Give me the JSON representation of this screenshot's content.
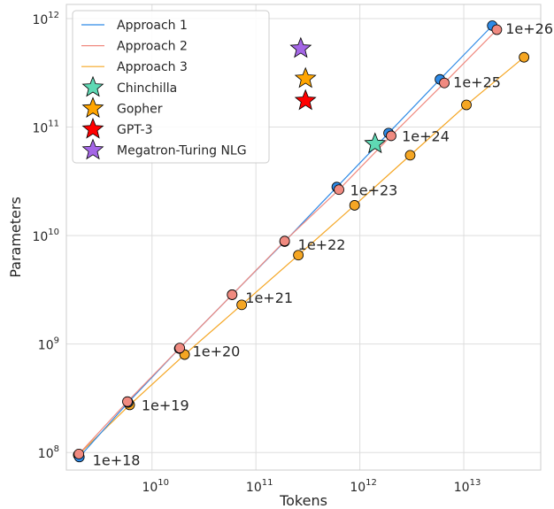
{
  "chart_data": {
    "type": "scatter",
    "title": "",
    "xlabel": "Tokens",
    "ylabel": "Parameters",
    "xscale": "log",
    "yscale": "log",
    "xlim": [
      1500000000.0,
      55000000000000.0
    ],
    "ylim": [
      69000000.0,
      1350000000000.0
    ],
    "grid": true,
    "legend_position": "top-left",
    "x_ticks": [
      {
        "value": 10000000000.0,
        "base": "10",
        "exp": "10"
      },
      {
        "value": 100000000000.0,
        "base": "10",
        "exp": "11"
      },
      {
        "value": 1000000000000.0,
        "base": "10",
        "exp": "12"
      },
      {
        "value": 10000000000000.0,
        "base": "10",
        "exp": "13"
      }
    ],
    "y_ticks": [
      {
        "value": 100000000.0,
        "base": "10",
        "exp": "8"
      },
      {
        "value": 1000000000.0,
        "base": "10",
        "exp": "9"
      },
      {
        "value": 10000000000.0,
        "base": "10",
        "exp": "10"
      },
      {
        "value": 100000000000.0,
        "base": "10",
        "exp": "11"
      },
      {
        "value": 1000000000000.0,
        "base": "10",
        "exp": "12"
      }
    ],
    "series": [
      {
        "name": "Approach 1",
        "color": "#2e8ae6",
        "marker": "circle",
        "points": [
          {
            "x": 2000000000.0,
            "y": 91000000.0
          },
          {
            "x": 5900000000.0,
            "y": 290000000.0
          },
          {
            "x": 18300000000.0,
            "y": 910000000.0
          },
          {
            "x": 59000000000.0,
            "y": 2850000000.0
          },
          {
            "x": 189000000000.0,
            "y": 8800000000.0
          },
          {
            "x": 600000000000.0,
            "y": 28000000000.0
          },
          {
            "x": 1890000000000.0,
            "y": 88000000000.0
          },
          {
            "x": 5900000000000.0,
            "y": 275000000000.0
          },
          {
            "x": 18800000000000.0,
            "y": 860000000000.0
          }
        ]
      },
      {
        "name": "Approach 2",
        "color": "#f08a80",
        "marker": "circle",
        "points": [
          {
            "x": 1980000000.0,
            "y": 97000000.0
          },
          {
            "x": 5800000000.0,
            "y": 295000000.0
          },
          {
            "x": 18500000000.0,
            "y": 920000000.0
          },
          {
            "x": 59000000000.0,
            "y": 2850000000.0
          },
          {
            "x": 189000000000.0,
            "y": 8900000000.0
          },
          {
            "x": 630000000000.0,
            "y": 26500000000.0
          },
          {
            "x": 2000000000000.0,
            "y": 83000000000.0
          },
          {
            "x": 6500000000000.0,
            "y": 255000000000.0
          },
          {
            "x": 20800000000000.0,
            "y": 790000000000.0
          }
        ]
      },
      {
        "name": "Approach 3",
        "color": "#f5a623",
        "marker": "circle",
        "points": [
          {
            "x": 1950000000.0,
            "y": 95000000.0
          },
          {
            "x": 6100000000.0,
            "y": 275000000.0
          },
          {
            "x": 20600000000.0,
            "y": 800000000.0
          },
          {
            "x": 73000000000.0,
            "y": 2300000000.0
          },
          {
            "x": 256000000000.0,
            "y": 6600000000.0
          },
          {
            "x": 890000000000.0,
            "y": 19000000000.0
          },
          {
            "x": 3050000000000.0,
            "y": 55000000000.0
          },
          {
            "x": 10600000000000.0,
            "y": 160000000000.0
          },
          {
            "x": 38000000000000.0,
            "y": 440000000000.0
          }
        ]
      }
    ],
    "models": [
      {
        "name": "Chinchilla",
        "color": "#5fd9b4",
        "marker": "star",
        "x": 1400000000000.0,
        "y": 70000000000.0
      },
      {
        "name": "Gopher",
        "color": "#ffa500",
        "marker": "star",
        "x": 300000000000.0,
        "y": 280000000000.0
      },
      {
        "name": "GPT-3",
        "color": "#ff0000",
        "marker": "star",
        "x": 300000000000.0,
        "y": 175000000000.0
      },
      {
        "name": "Megatron-Turing NLG",
        "color": "#a466e6",
        "marker": "star",
        "x": 270000000000.0,
        "y": 530000000000.0
      }
    ],
    "annotations": [
      {
        "text": "1e+18",
        "x": 2000000000.0,
        "y": 91000000.0
      },
      {
        "text": "1e+19",
        "x": 5900000000.0,
        "y": 290000000.0
      },
      {
        "text": "1e+20",
        "x": 18300000000.0,
        "y": 910000000.0
      },
      {
        "text": "1e+21",
        "x": 59000000000.0,
        "y": 2850000000.0
      },
      {
        "text": "1e+22",
        "x": 189000000000.0,
        "y": 8800000000.0
      },
      {
        "text": "1e+23",
        "x": 600000000000.0,
        "y": 28000000000.0
      },
      {
        "text": "1e+24",
        "x": 1890000000000.0,
        "y": 88000000000.0
      },
      {
        "text": "1e+25",
        "x": 5900000000000.0,
        "y": 275000000000.0
      },
      {
        "text": "1e+26",
        "x": 18800000000000.0,
        "y": 860000000000.0
      }
    ]
  }
}
